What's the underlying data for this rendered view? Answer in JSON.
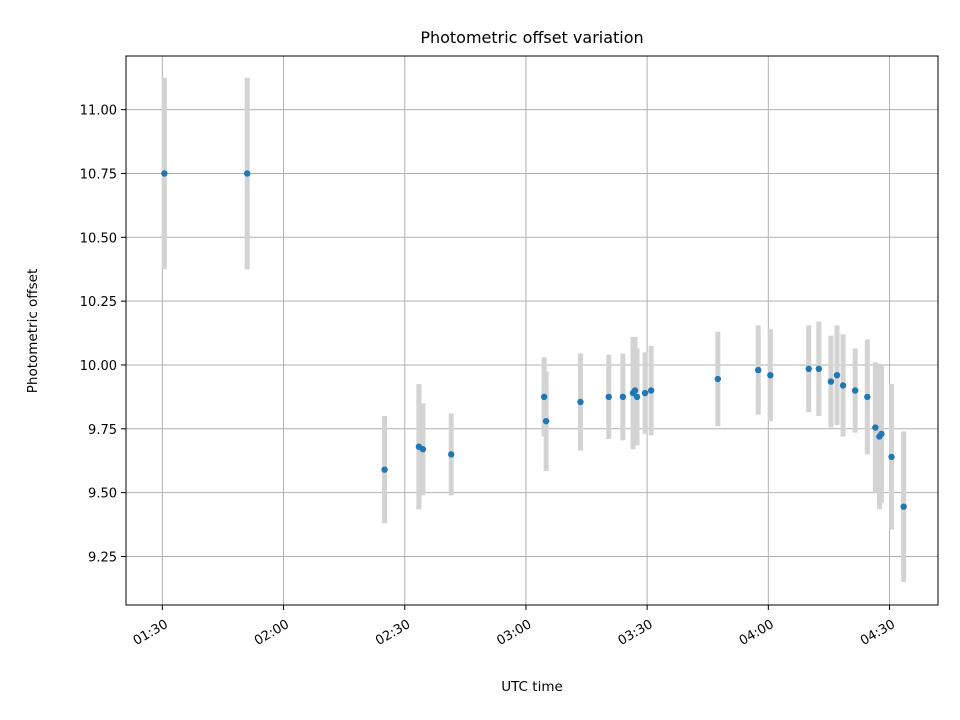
{
  "chart_data": {
    "type": "scatter",
    "title": "Photometric offset variation",
    "xlabel": "UTC time",
    "ylabel": "Photometric offset",
    "x_unit": "UTC time",
    "xlim": [
      "01:21",
      "04:42"
    ],
    "ylim": [
      9.06,
      11.21
    ],
    "x_ticks": [
      "01:30",
      "02:00",
      "02:30",
      "03:00",
      "03:30",
      "04:00",
      "04:30"
    ],
    "y_ticks": [
      "9.25",
      "9.50",
      "9.75",
      "10.00",
      "10.25",
      "10.50",
      "10.75",
      "11.00"
    ],
    "grid": true,
    "point_color": "#1f77b4",
    "errorbar_color": "#d3d3d3",
    "points": [
      {
        "t": "01:30:30",
        "y": 10.75,
        "err": 0.375
      },
      {
        "t": "01:51:00",
        "y": 10.75,
        "err": 0.375
      },
      {
        "t": "02:25:00",
        "y": 9.59,
        "err": 0.21
      },
      {
        "t": "02:33:30",
        "y": 9.68,
        "err": 0.245
      },
      {
        "t": "02:34:30",
        "y": 9.67,
        "err": 0.18
      },
      {
        "t": "02:41:30",
        "y": 9.65,
        "err": 0.16
      },
      {
        "t": "03:04:30",
        "y": 9.875,
        "err": 0.155
      },
      {
        "t": "03:05:00",
        "y": 9.78,
        "err": 0.195
      },
      {
        "t": "03:13:30",
        "y": 9.855,
        "err": 0.19
      },
      {
        "t": "03:20:30",
        "y": 9.875,
        "err": 0.165
      },
      {
        "t": "03:24:00",
        "y": 9.875,
        "err": 0.17
      },
      {
        "t": "03:26:30",
        "y": 9.89,
        "err": 0.22
      },
      {
        "t": "03:27:00",
        "y": 9.9,
        "err": 0.21
      },
      {
        "t": "03:27:30",
        "y": 9.875,
        "err": 0.19
      },
      {
        "t": "03:29:30",
        "y": 9.89,
        "err": 0.16
      },
      {
        "t": "03:31:00",
        "y": 9.9,
        "err": 0.175
      },
      {
        "t": "03:47:30",
        "y": 9.945,
        "err": 0.185
      },
      {
        "t": "03:57:30",
        "y": 9.98,
        "err": 0.175
      },
      {
        "t": "04:00:30",
        "y": 9.96,
        "err": 0.18
      },
      {
        "t": "04:10:00",
        "y": 9.985,
        "err": 0.17
      },
      {
        "t": "04:12:30",
        "y": 9.985,
        "err": 0.185
      },
      {
        "t": "04:15:30",
        "y": 9.935,
        "err": 0.18
      },
      {
        "t": "04:17:00",
        "y": 9.96,
        "err": 0.195
      },
      {
        "t": "04:18:30",
        "y": 9.92,
        "err": 0.2
      },
      {
        "t": "04:21:30",
        "y": 9.9,
        "err": 0.165
      },
      {
        "t": "04:24:30",
        "y": 9.875,
        "err": 0.225
      },
      {
        "t": "04:26:30",
        "y": 9.755,
        "err": 0.255
      },
      {
        "t": "04:27:30",
        "y": 9.72,
        "err": 0.285
      },
      {
        "t": "04:28:00",
        "y": 9.73,
        "err": 0.27
      },
      {
        "t": "04:30:30",
        "y": 9.64,
        "err": 0.285
      },
      {
        "t": "04:33:30",
        "y": 9.445,
        "err": 0.295
      }
    ]
  }
}
